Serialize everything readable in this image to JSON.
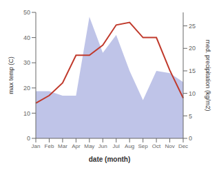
{
  "chart_data": {
    "type": "line",
    "xlabel": "date (month)",
    "ylabel": "max temp (C)",
    "y2label": "med. precipitation (kg/m2)",
    "categories": [
      "Jan",
      "Feb",
      "Mar",
      "Apr",
      "May",
      "Jun",
      "Jul",
      "Aug",
      "Sep",
      "Oct",
      "Nov",
      "Dec"
    ],
    "series": [
      {
        "type": "area",
        "color": "#aab0e0",
        "axis": "y2",
        "values": [
          10.5,
          10.5,
          9.5,
          9.5,
          27,
          19,
          23,
          15,
          8.5,
          15,
          14.5,
          12.5
        ]
      },
      {
        "type": "line",
        "color": "#c0392b",
        "values": [
          14,
          17,
          22,
          33,
          33,
          37,
          45,
          46,
          40,
          40,
          27,
          16
        ]
      }
    ],
    "ylim": [
      0,
      50
    ],
    "yticks": [
      0,
      10,
      20,
      30,
      40,
      50
    ],
    "y2lim": [
      0,
      28
    ],
    "y2ticks": [
      0,
      5,
      10,
      15,
      20,
      25
    ],
    "grid": false
  }
}
